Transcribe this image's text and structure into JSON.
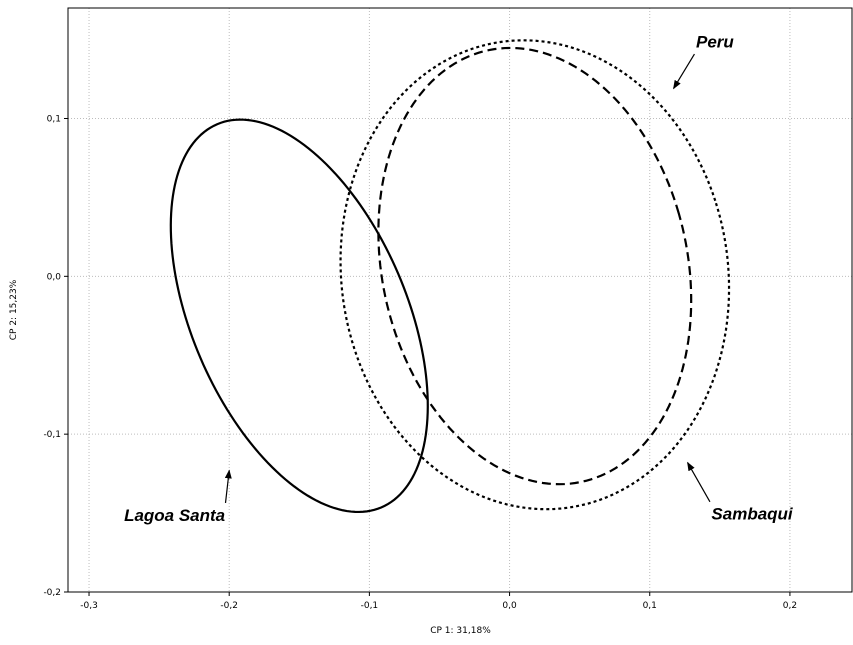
{
  "chart_data": {
    "type": "scatter",
    "xlabel": "CP 1: 31,18%",
    "ylabel": "CP 2: 15,23%",
    "xlim": [
      -0.315,
      0.245
    ],
    "ylim": [
      -0.2,
      0.17
    ],
    "x_ticks": [
      -0.3,
      -0.2,
      -0.1,
      0.0,
      0.1,
      0.2
    ],
    "x_tick_labels": [
      "-0,3",
      "-0,2",
      "-0,1",
      "0,0",
      "0,1",
      "0,2"
    ],
    "y_ticks": [
      -0.2,
      -0.1,
      0.0,
      0.1
    ],
    "y_tick_labels": [
      "-0,2",
      "-0,1",
      "0,0",
      "0,1"
    ],
    "grid": true,
    "series": [
      {
        "name": "Lagoa Santa",
        "style": "solid",
        "color": "#000000",
        "ellipse": {
          "cx": -0.15,
          "cy": -0.025,
          "rx": 0.075,
          "ry": 0.135,
          "angle_deg": 28
        }
      },
      {
        "name": "Peru",
        "style": "dashed",
        "color": "#000000",
        "ellipse": {
          "cx": 0.018,
          "cy": 0.0065,
          "rx": 0.108,
          "ry": 0.141,
          "angle_deg": 18
        }
      },
      {
        "name": "Sambaqui",
        "style": "dotted",
        "color": "#000000",
        "ellipse": {
          "cx": 0.018,
          "cy": 0.001,
          "rx": 0.137,
          "ry": 0.15,
          "angle_deg": 20
        }
      }
    ],
    "annotations": [
      {
        "text": "Peru",
        "series": "Peru",
        "text_at": [
          0.133,
          0.145
        ],
        "arrow_to": [
          0.117,
          0.119
        ]
      },
      {
        "text": "Lagoa Santa",
        "series": "Lagoa Santa",
        "text_at": [
          -0.275,
          -0.155
        ],
        "arrow_to": [
          -0.2,
          -0.123
        ]
      },
      {
        "text": "Sambaqui",
        "series": "Sambaqui",
        "text_at": [
          0.144,
          -0.154
        ],
        "arrow_to": [
          0.127,
          -0.118
        ]
      }
    ]
  }
}
